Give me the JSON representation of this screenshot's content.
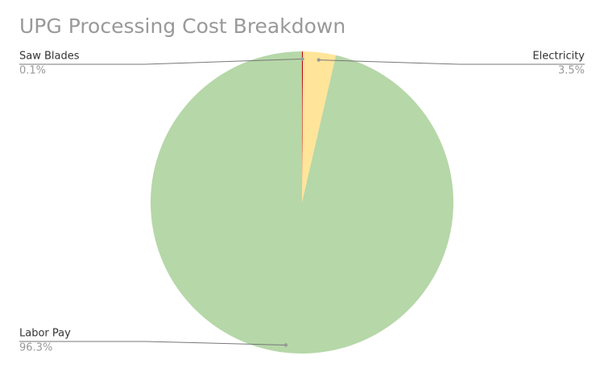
{
  "chart_data": {
    "type": "pie",
    "title": "UPG Processing Cost Breakdown",
    "categories": [
      "Saw Blades",
      "Electricity",
      "Labor Pay"
    ],
    "values": [
      0.1,
      3.5,
      96.3
    ],
    "value_labels": [
      "0.1%",
      "3.5%",
      "96.3%"
    ],
    "colors": [
      "#c00000",
      "#ffe599",
      "#b6d7a8"
    ]
  }
}
